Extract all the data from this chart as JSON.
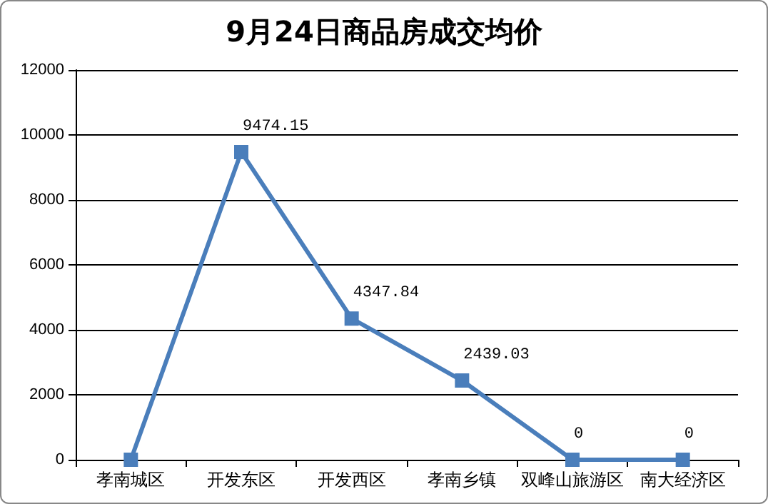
{
  "chart_data": {
    "type": "line",
    "title": "9月24日商品房成交均价",
    "categories": [
      "孝南城区",
      "开发东区",
      "开发西区",
      "孝南乡镇",
      "双峰山旅游区",
      "南大经济区"
    ],
    "series": [
      {
        "color": "#4a7ebb",
        "values": [
          0,
          9474.15,
          4347.84,
          2439.03,
          0,
          0
        ],
        "value_labels": [
          null,
          "9474.15",
          "4347.84",
          "2439.03",
          "0",
          "0"
        ]
      }
    ],
    "ylim": [
      0,
      12000
    ],
    "yticks": [
      0,
      2000,
      4000,
      6000,
      8000,
      10000,
      12000
    ],
    "grid": "y",
    "marker": "square",
    "line_style": "solid"
  }
}
